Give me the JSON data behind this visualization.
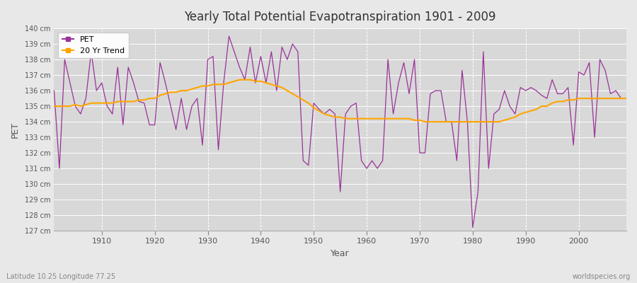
{
  "title": "Yearly Total Potential Evapotranspiration 1901 - 2009",
  "xlabel": "Year",
  "ylabel": "PET",
  "subtitle_left": "Latitude 10.25 Longitude 77.25",
  "subtitle_right": "worldspecies.org",
  "pet_color": "#993399",
  "trend_color": "#FFA500",
  "bg_color": "#e8e8e8",
  "plot_bg_color": "#d8d8d8",
  "ylim": [
    127,
    140
  ],
  "xlim": [
    1901,
    2009
  ],
  "years": [
    1901,
    1902,
    1903,
    1904,
    1905,
    1906,
    1907,
    1908,
    1909,
    1910,
    1911,
    1912,
    1913,
    1914,
    1915,
    1916,
    1917,
    1918,
    1919,
    1920,
    1921,
    1922,
    1923,
    1924,
    1925,
    1926,
    1927,
    1928,
    1929,
    1930,
    1931,
    1932,
    1933,
    1934,
    1935,
    1936,
    1937,
    1938,
    1939,
    1940,
    1941,
    1942,
    1943,
    1944,
    1945,
    1946,
    1947,
    1948,
    1949,
    1950,
    1951,
    1952,
    1953,
    1954,
    1955,
    1956,
    1957,
    1958,
    1959,
    1960,
    1961,
    1962,
    1963,
    1964,
    1965,
    1966,
    1967,
    1968,
    1969,
    1970,
    1971,
    1972,
    1973,
    1974,
    1975,
    1976,
    1977,
    1978,
    1979,
    1980,
    1981,
    1982,
    1983,
    1984,
    1985,
    1986,
    1987,
    1988,
    1989,
    1990,
    1991,
    1992,
    1993,
    1994,
    1995,
    1996,
    1997,
    1998,
    1999,
    2000,
    2001,
    2002,
    2003,
    2004,
    2005,
    2006,
    2007,
    2008,
    2009
  ],
  "pet": [
    136.0,
    131.0,
    138.0,
    136.5,
    135.0,
    134.5,
    135.5,
    138.5,
    136.0,
    136.5,
    135.0,
    134.5,
    137.5,
    133.8,
    137.5,
    136.5,
    135.3,
    135.2,
    133.8,
    133.8,
    137.8,
    136.5,
    135.0,
    133.5,
    135.5,
    133.5,
    135.0,
    135.5,
    132.5,
    138.0,
    138.2,
    132.2,
    136.5,
    139.5,
    138.5,
    137.5,
    136.7,
    138.8,
    136.5,
    138.2,
    136.5,
    138.5,
    136.0,
    138.8,
    138.0,
    139.0,
    138.5,
    131.5,
    131.2,
    135.2,
    134.8,
    134.5,
    134.8,
    134.5,
    129.5,
    134.5,
    135.0,
    135.2,
    131.5,
    131.0,
    131.5,
    131.0,
    131.5,
    138.0,
    134.5,
    136.5,
    137.8,
    135.8,
    138.0,
    132.0,
    132.0,
    135.8,
    136.0,
    136.0,
    134.0,
    134.0,
    131.5,
    137.3,
    134.0,
    127.2,
    129.5,
    138.5,
    131.0,
    134.5,
    134.8,
    136.0,
    135.0,
    134.5,
    136.2,
    136.0,
    136.2,
    136.0,
    135.7,
    135.5,
    136.7,
    135.8,
    135.8,
    136.2,
    132.5,
    137.2,
    137.0,
    137.8,
    133.0,
    138.0,
    137.3,
    135.8,
    136.0,
    135.5,
    135.5
  ],
  "trend": [
    135.0,
    135.0,
    135.0,
    135.0,
    135.1,
    135.0,
    135.1,
    135.2,
    135.2,
    135.2,
    135.2,
    135.2,
    135.3,
    135.3,
    135.3,
    135.3,
    135.4,
    135.4,
    135.5,
    135.5,
    135.7,
    135.8,
    135.9,
    135.9,
    136.0,
    136.0,
    136.1,
    136.2,
    136.3,
    136.3,
    136.4,
    136.4,
    136.4,
    136.5,
    136.6,
    136.7,
    136.7,
    136.7,
    136.6,
    136.6,
    136.5,
    136.4,
    136.3,
    136.2,
    136.0,
    135.8,
    135.6,
    135.4,
    135.2,
    134.9,
    134.7,
    134.5,
    134.4,
    134.3,
    134.3,
    134.2,
    134.2,
    134.2,
    134.2,
    134.2,
    134.2,
    134.2,
    134.2,
    134.2,
    134.2,
    134.2,
    134.2,
    134.2,
    134.1,
    134.1,
    134.0,
    134.0,
    134.0,
    134.0,
    134.0,
    134.0,
    134.0,
    134.0,
    134.0,
    134.0,
    134.0,
    134.0,
    134.0,
    134.0,
    134.0,
    134.1,
    134.2,
    134.3,
    134.5,
    134.6,
    134.7,
    134.8,
    135.0,
    135.0,
    135.2,
    135.3,
    135.3,
    135.4,
    135.4,
    135.5,
    135.5,
    135.5,
    135.5,
    135.5,
    135.5,
    135.5,
    135.5,
    135.5,
    135.5
  ]
}
